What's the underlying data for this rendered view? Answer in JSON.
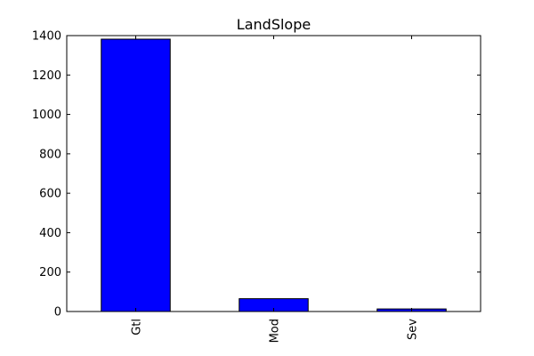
{
  "chart_data": {
    "type": "bar",
    "title": "LandSlope",
    "categories": [
      "Gtl",
      "Mod",
      "Sev"
    ],
    "values": [
      1382,
      65,
      13
    ],
    "xlabel": "",
    "ylabel": "",
    "ylim": [
      0,
      1400
    ],
    "yticks": [
      0,
      200,
      400,
      600,
      800,
      1000,
      1200,
      1400
    ],
    "bar_color": "#0000ff",
    "edge_color": "#000000",
    "grid": false,
    "legend": "none"
  }
}
